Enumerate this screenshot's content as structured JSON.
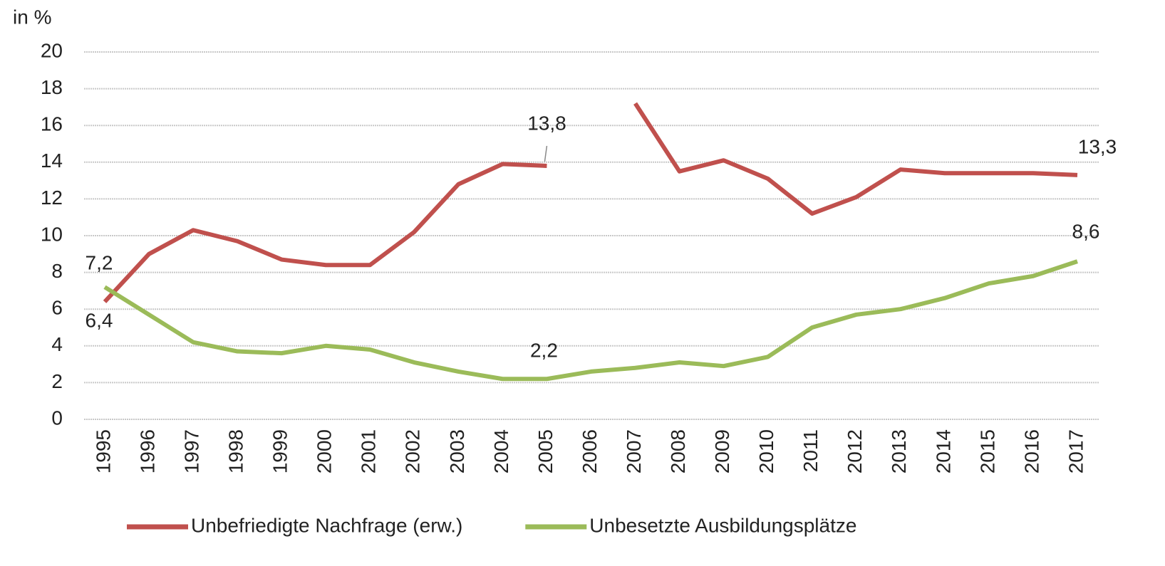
{
  "chart_data": {
    "type": "line",
    "y_label": "in %",
    "categories": [
      "1995",
      "1996",
      "1997",
      "1998",
      "1999",
      "2000",
      "2001",
      "2002",
      "2003",
      "2004",
      "2005",
      "2006",
      "2007",
      "2008",
      "2009",
      "2010",
      "2011",
      "2012",
      "2013",
      "2014",
      "2015",
      "2016",
      "2017"
    ],
    "series": [
      {
        "name": "Unbefriedigte Nachfrage (erw.)",
        "color": "#c0504d",
        "values": [
          6.4,
          9.0,
          10.3,
          9.7,
          8.7,
          8.4,
          8.4,
          10.2,
          12.8,
          13.9,
          13.8,
          null,
          17.2,
          13.5,
          14.1,
          13.1,
          11.2,
          12.1,
          13.6,
          13.4,
          13.4,
          13.4,
          13.3
        ],
        "value_labels": [
          "6,4",
          null,
          null,
          null,
          null,
          null,
          null,
          null,
          null,
          null,
          "13,8",
          null,
          null,
          null,
          null,
          null,
          null,
          null,
          null,
          null,
          null,
          null,
          "13,3"
        ]
      },
      {
        "name": "Unbesetzte Ausbildungsplätze",
        "color": "#9bbb59",
        "values": [
          7.2,
          5.7,
          4.2,
          3.7,
          3.6,
          4.0,
          3.8,
          3.1,
          2.6,
          2.2,
          2.2,
          2.6,
          2.8,
          3.1,
          2.9,
          3.4,
          5.0,
          5.7,
          6.0,
          6.6,
          7.4,
          7.8,
          8.6
        ],
        "value_labels": [
          "7,2",
          null,
          null,
          null,
          null,
          null,
          null,
          null,
          null,
          null,
          "2,2",
          null,
          null,
          null,
          null,
          null,
          null,
          null,
          null,
          null,
          null,
          null,
          "8,6"
        ]
      }
    ],
    "ylim": [
      0,
      20
    ],
    "yticks": [
      0,
      2,
      4,
      6,
      8,
      10,
      12,
      14,
      16,
      18,
      20
    ],
    "grid": true,
    "legend": "bottom"
  }
}
